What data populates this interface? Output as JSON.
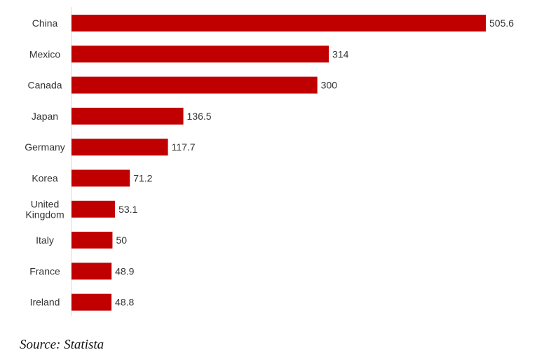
{
  "chart_data": {
    "type": "bar",
    "orientation": "horizontal",
    "categories": [
      "China",
      "Mexico",
      "Canada",
      "Japan",
      "Germany",
      "Korea",
      "United Kingdom",
      "Italy",
      "France",
      "Ireland"
    ],
    "category_lines": [
      [
        "China"
      ],
      [
        "Mexico"
      ],
      [
        "Canada"
      ],
      [
        "Japan"
      ],
      [
        "Germany"
      ],
      [
        "Korea"
      ],
      [
        "United",
        "Kingdom"
      ],
      [
        "Italy"
      ],
      [
        "France"
      ],
      [
        "Ireland"
      ]
    ],
    "values": [
      505.6,
      314,
      300,
      136.5,
      117.7,
      71.2,
      53.1,
      50,
      48.9,
      48.8
    ],
    "value_labels": [
      "505.6",
      "314",
      "300",
      "136.5",
      "117.7",
      "71.2",
      "53.1",
      "50",
      "48.9",
      "48.8"
    ],
    "xlim": [
      0,
      505.6
    ],
    "grid": false,
    "colors": {
      "bar": "#c00000"
    }
  },
  "source": "Source: Statista"
}
